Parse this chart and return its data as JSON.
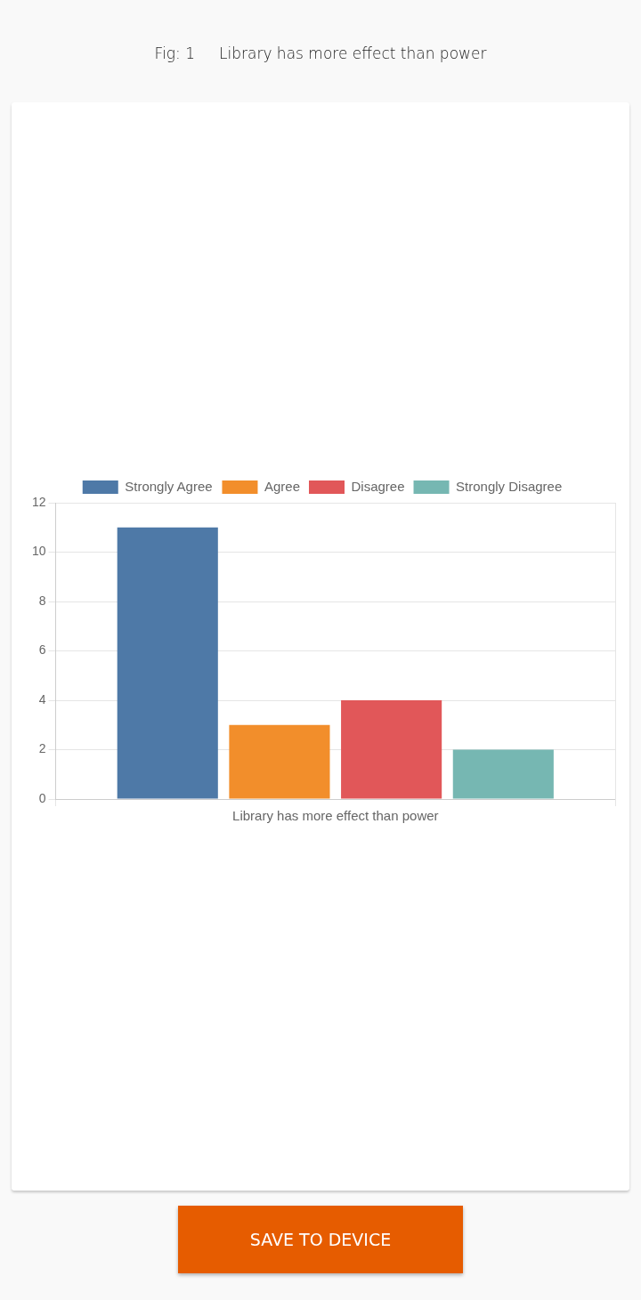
{
  "chart_data": {
    "type": "bar",
    "title": "Fig: 1     Library has more effect than power",
    "categories": [
      "Library has more effect than power"
    ],
    "series": [
      {
        "name": "Strongly Agree",
        "color": "#4e79a7",
        "values": [
          11
        ]
      },
      {
        "name": "Agree",
        "color": "#f28e2b",
        "values": [
          3
        ]
      },
      {
        "name": "Disagree",
        "color": "#e15759",
        "values": [
          4
        ]
      },
      {
        "name": "Strongly Disagree",
        "color": "#76b7b2",
        "values": [
          2
        ]
      }
    ],
    "ylim": [
      0,
      12
    ],
    "yticks": [
      0,
      2,
      4,
      6,
      8,
      10,
      12
    ],
    "grid": true,
    "legend": "top",
    "annotations": [
      "SAVE TO DEVICE"
    ]
  }
}
